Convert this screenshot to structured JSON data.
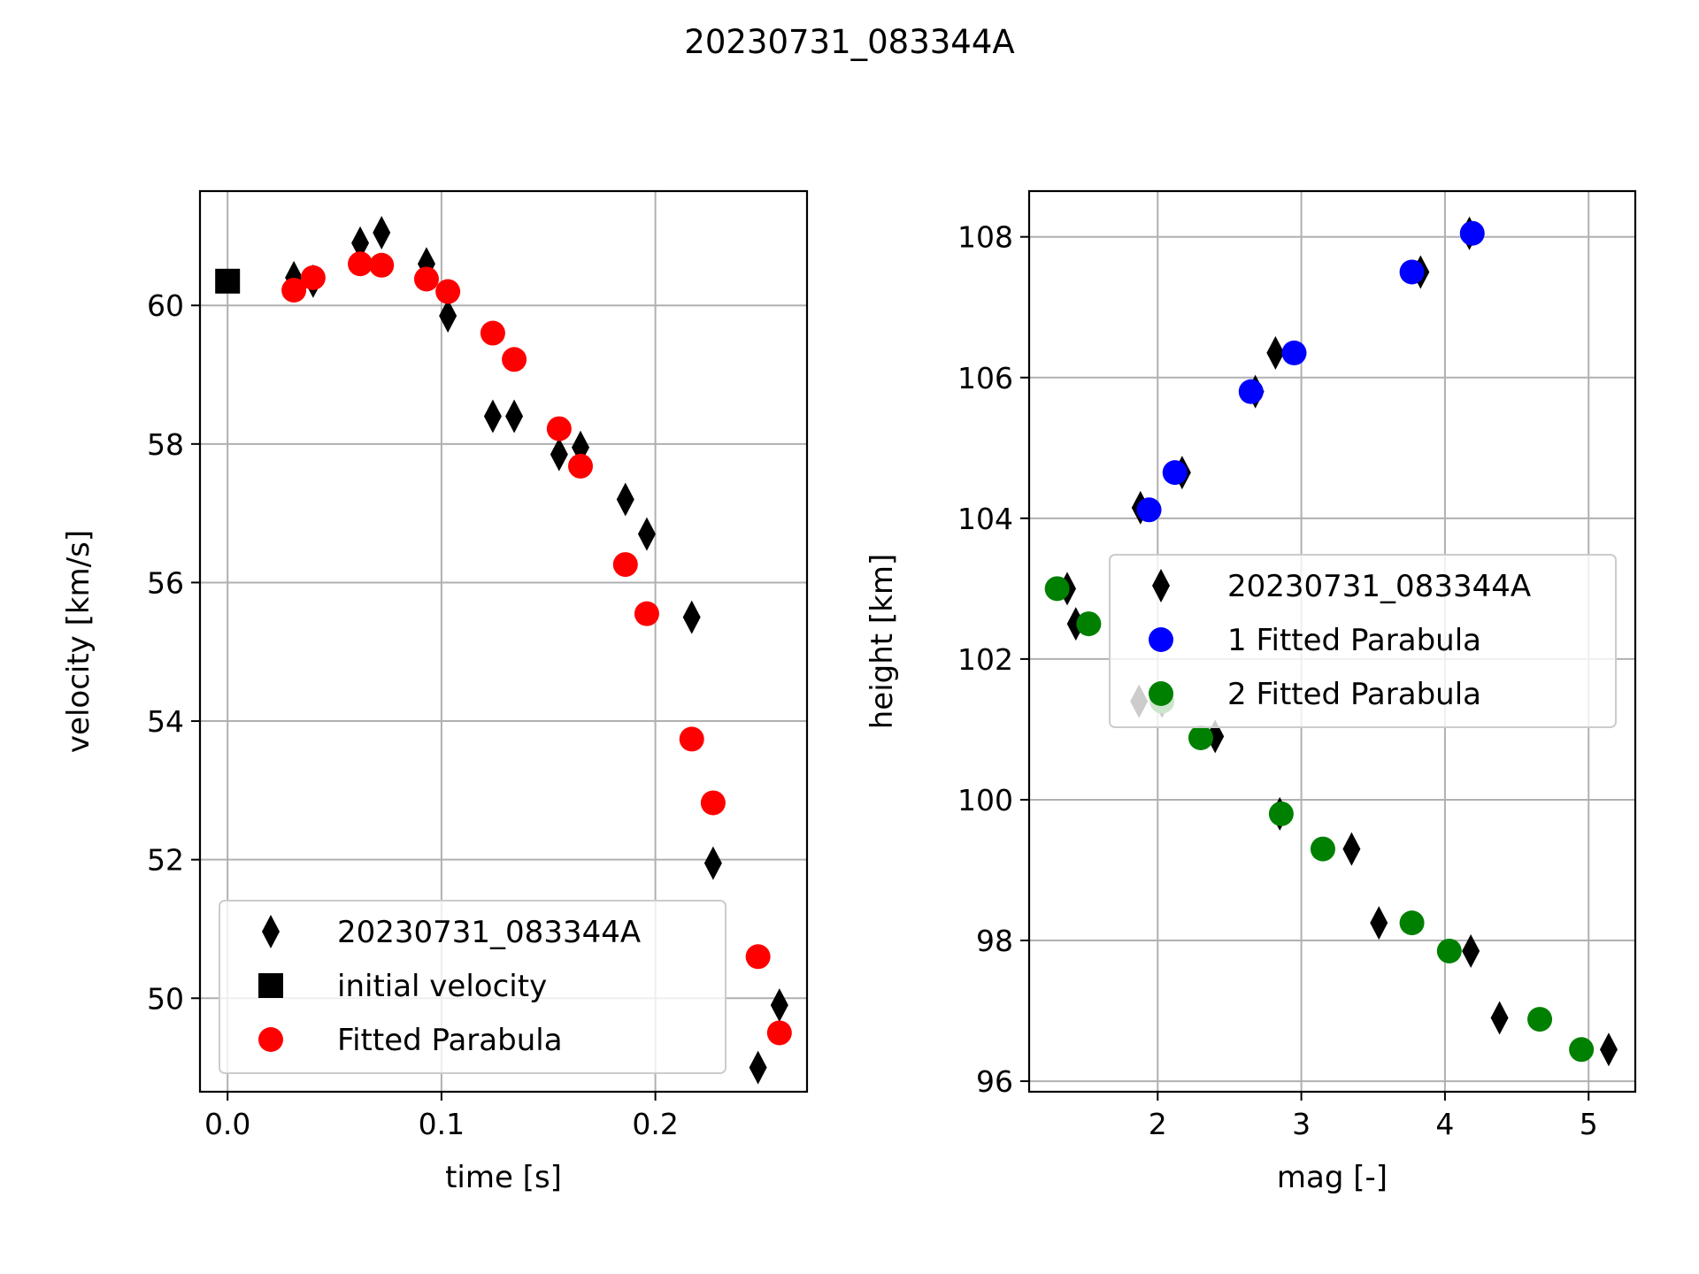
{
  "figure": {
    "title": "20230731_083344A"
  },
  "chart_data": [
    {
      "type": "scatter",
      "title": "",
      "xlabel": "time [s]",
      "ylabel": "velocity [km/s]",
      "xlim": [
        -0.0129,
        0.2709
      ],
      "ylim": [
        48.65,
        61.65
      ],
      "xticks": [
        0.0,
        0.1,
        0.2
      ],
      "xtick_labels": [
        "0.0",
        "0.1",
        "0.2"
      ],
      "yticks": [
        50,
        52,
        54,
        56,
        58,
        60
      ],
      "ytick_labels": [
        "50",
        "52",
        "54",
        "56",
        "58",
        "60"
      ],
      "grid": true,
      "legend_position": "lower-left",
      "series": [
        {
          "name": "20230731_083344A",
          "marker": "thin_diamond",
          "color": "#000000",
          "x": [
            0.031,
            0.04,
            0.062,
            0.072,
            0.093,
            0.103,
            0.124,
            0.134,
            0.155,
            0.165,
            0.186,
            0.196,
            0.217,
            0.227,
            0.248,
            0.258
          ],
          "y": [
            60.4,
            60.35,
            60.9,
            61.05,
            60.6,
            59.85,
            58.4,
            58.4,
            57.85,
            57.95,
            57.2,
            56.7,
            55.5,
            51.95,
            49.0,
            49.9
          ]
        },
        {
          "name": "initial velocity",
          "marker": "square",
          "color": "#000000",
          "x": [
            0.0
          ],
          "y": [
            60.35
          ]
        },
        {
          "name": "Fitted Parabula",
          "marker": "circle",
          "color": "#ff0000",
          "x": [
            0.031,
            0.04,
            0.062,
            0.072,
            0.093,
            0.103,
            0.124,
            0.134,
            0.155,
            0.165,
            0.186,
            0.196,
            0.217,
            0.227,
            0.248,
            0.258
          ],
          "y": [
            60.22,
            60.4,
            60.6,
            60.58,
            60.38,
            60.2,
            59.6,
            59.22,
            58.22,
            57.68,
            56.26,
            55.55,
            53.74,
            52.82,
            50.6,
            49.5
          ]
        }
      ]
    },
    {
      "type": "scatter",
      "title": "",
      "xlabel": "mag [-]",
      "ylabel": "height [km]",
      "xlim": [
        1.105,
        5.325
      ],
      "ylim": [
        95.85,
        108.65
      ],
      "xticks": [
        2,
        3,
        4,
        5
      ],
      "xtick_labels": [
        "2",
        "3",
        "4",
        "5"
      ],
      "yticks": [
        96,
        98,
        100,
        102,
        104,
        106,
        108
      ],
      "ytick_labels": [
        "96",
        "98",
        "100",
        "102",
        "104",
        "106",
        "108"
      ],
      "grid": true,
      "legend_position": "center-right",
      "series": [
        {
          "name": "20230731_083344A",
          "marker": "thin_diamond",
          "color": "#000000",
          "x": [
            4.17,
            3.83,
            2.82,
            2.68,
            2.17,
            1.88,
            1.37,
            1.43,
            1.87,
            2.03,
            2.4,
            2.85,
            3.35,
            3.54,
            4.18,
            4.38,
            5.14
          ],
          "y": [
            108.05,
            107.5,
            106.35,
            105.8,
            104.65,
            104.15,
            103.0,
            102.5,
            101.4,
            101.4,
            100.9,
            99.8,
            99.3,
            98.25,
            97.85,
            96.9,
            96.45
          ]
        },
        {
          "name": "1 Fitted Parabula",
          "marker": "circle",
          "color": "#0000ff",
          "x": [
            4.19,
            3.77,
            2.95,
            2.65,
            2.12,
            1.94
          ],
          "y": [
            108.05,
            107.5,
            106.35,
            105.8,
            104.65,
            104.12
          ]
        },
        {
          "name": "2 Fitted Parabula",
          "marker": "circle",
          "color": "#008000",
          "x": [
            1.3,
            1.52,
            2.03,
            2.3,
            2.86,
            3.15,
            3.77,
            4.03,
            4.66,
            4.95
          ],
          "y": [
            103.0,
            102.5,
            101.4,
            100.88,
            99.8,
            99.3,
            98.25,
            97.85,
            96.88,
            96.45
          ]
        }
      ]
    }
  ]
}
